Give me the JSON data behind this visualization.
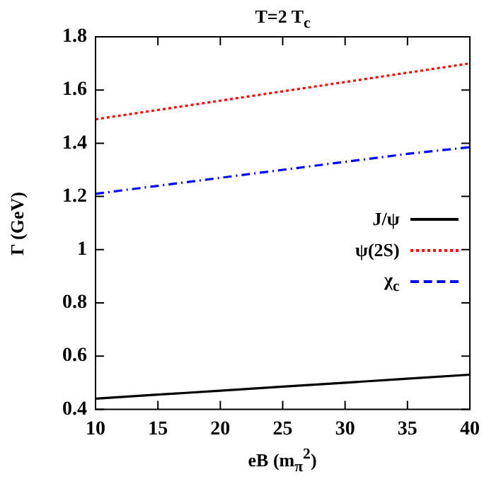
{
  "chart_data": {
    "type": "line",
    "title": "T=2 T$_{c}$",
    "xlabel": "eB (m$_{π}$$^{2}$)",
    "ylabel": "Γ (GeV)",
    "x": [
      10,
      15,
      20,
      25,
      30,
      35,
      40
    ],
    "series": [
      {
        "name": "J/ψ",
        "color": "#000000",
        "line_style": "solid",
        "values": [
          0.44,
          0.455,
          0.47,
          0.485,
          0.5,
          0.515,
          0.53
        ]
      },
      {
        "name": "ψ(2S)",
        "color": "#ff0000",
        "line_style": "dotted",
        "values": [
          1.49,
          1.525,
          1.56,
          1.595,
          1.63,
          1.665,
          1.7
        ]
      },
      {
        "name": "χ$_{c}$",
        "color": "#0000ff",
        "line_style": "dashed",
        "values": [
          1.21,
          1.24,
          1.27,
          1.3,
          1.33,
          1.36,
          1.385
        ]
      }
    ],
    "xlim": [
      10,
      40
    ],
    "xticks": [
      10,
      15,
      20,
      25,
      30,
      35,
      40
    ],
    "ylim": [
      0.4,
      1.8
    ],
    "yticks": [
      0.4,
      0.6,
      0.8,
      1,
      1.2,
      1.4,
      1.6,
      1.8
    ],
    "grid": false,
    "legend": "right",
    "marker": "none"
  }
}
